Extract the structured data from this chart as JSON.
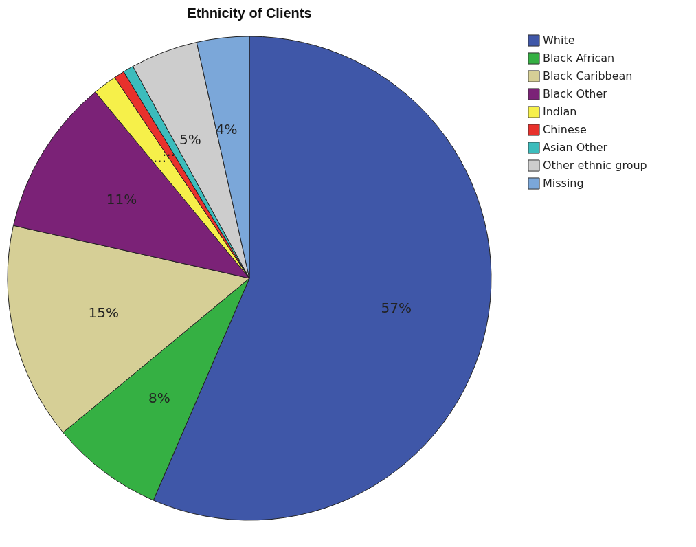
{
  "chart_data": {
    "type": "pie",
    "title": "Ethnicity of Clients",
    "categories": [
      "White",
      "Black African",
      "Black Caribbean",
      "Black Other",
      "Indian",
      "Chinese",
      "Asian Other",
      "Other ethnic group",
      "Missing"
    ],
    "values": [
      56.5,
      7.5,
      14.5,
      10.5,
      1.6,
      0.7,
      0.7,
      4.5,
      3.5
    ],
    "value_labels": [
      "57%",
      "8%",
      "15%",
      "11%",
      "...",
      "...",
      null,
      "5%",
      "4%"
    ],
    "colors": [
      "#3f57a8",
      "#35b043",
      "#d6cf96",
      "#7b2277",
      "#f6f04a",
      "#e8312c",
      "#3cbcbc",
      "#cdcdcd",
      "#7ba7d9"
    ],
    "legend": "top right"
  }
}
